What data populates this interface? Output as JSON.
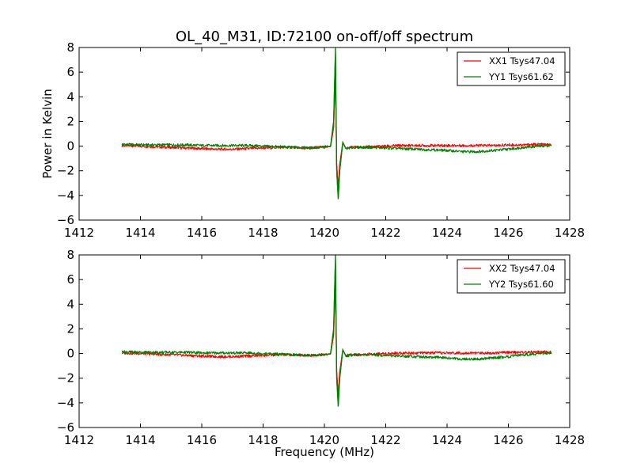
{
  "chart_data": [
    {
      "type": "line",
      "title": "OL_40_M31, ID:72100 on-off/off spectrum",
      "xlabel": "",
      "ylabel": "Power in Kelvin",
      "xlim": [
        1412,
        1428
      ],
      "ylim": [
        -6,
        8
      ],
      "xticks": [
        1412,
        1414,
        1416,
        1418,
        1420,
        1422,
        1424,
        1426,
        1428
      ],
      "yticks": [
        -6,
        -4,
        -2,
        0,
        2,
        4,
        6,
        8
      ],
      "legend_position": "top-right",
      "series": [
        {
          "name": "XX1 Tsys47.04",
          "color": "#ff0000",
          "x": [
            1413.4,
            1414.0,
            1414.5,
            1415.0,
            1415.5,
            1416.0,
            1416.5,
            1417.0,
            1417.5,
            1418.0,
            1418.5,
            1419.0,
            1419.5,
            1419.9,
            1420.2,
            1420.3,
            1420.36,
            1420.4,
            1420.45,
            1420.5,
            1420.6,
            1420.7,
            1420.8,
            1421.0,
            1421.5,
            1422.0,
            1422.5,
            1423.0,
            1423.5,
            1424.0,
            1424.5,
            1425.0,
            1425.5,
            1426.0,
            1426.5,
            1427.0,
            1427.4
          ],
          "y": [
            0.05,
            0.0,
            -0.05,
            -0.1,
            -0.15,
            -0.2,
            -0.25,
            -0.25,
            -0.2,
            -0.15,
            -0.1,
            -0.1,
            -0.15,
            -0.1,
            -0.05,
            1.5,
            6.0,
            -1.5,
            -3.4,
            -1.5,
            0.3,
            -0.2,
            -0.1,
            -0.1,
            -0.05,
            0.0,
            0.05,
            0.05,
            0.05,
            0.05,
            0.05,
            0.05,
            0.05,
            0.1,
            0.1,
            0.15,
            0.1
          ]
        },
        {
          "name": "YY1 Tsys61.62",
          "color": "#008000",
          "x": [
            1413.4,
            1414.0,
            1414.5,
            1415.0,
            1415.5,
            1416.0,
            1416.5,
            1417.0,
            1417.5,
            1418.0,
            1418.5,
            1419.0,
            1419.5,
            1419.9,
            1420.2,
            1420.3,
            1420.36,
            1420.4,
            1420.45,
            1420.5,
            1420.6,
            1420.7,
            1420.8,
            1421.0,
            1421.5,
            1422.0,
            1422.5,
            1423.0,
            1423.5,
            1424.0,
            1424.5,
            1425.0,
            1425.5,
            1426.0,
            1426.5,
            1427.0,
            1427.4
          ],
          "y": [
            0.15,
            0.1,
            0.1,
            0.1,
            0.1,
            0.05,
            0.05,
            0.05,
            0.05,
            0.0,
            -0.05,
            -0.1,
            -0.15,
            -0.1,
            0.0,
            2.0,
            8.0,
            -2.0,
            -4.3,
            -2.0,
            0.3,
            -0.2,
            -0.15,
            -0.1,
            -0.1,
            -0.15,
            -0.2,
            -0.25,
            -0.3,
            -0.35,
            -0.45,
            -0.45,
            -0.35,
            -0.25,
            -0.1,
            0.0,
            0.05
          ]
        }
      ]
    },
    {
      "type": "line",
      "title": "",
      "xlabel": "Frequency (MHz)",
      "ylabel": "",
      "xlim": [
        1412,
        1428
      ],
      "ylim": [
        -6,
        8
      ],
      "xticks": [
        1412,
        1414,
        1416,
        1418,
        1420,
        1422,
        1424,
        1426,
        1428
      ],
      "yticks": [
        -6,
        -4,
        -2,
        0,
        2,
        4,
        6,
        8
      ],
      "legend_position": "top-right",
      "series": [
        {
          "name": "XX2 Tsys47.04",
          "color": "#ff0000",
          "x": [
            1413.4,
            1414.0,
            1414.5,
            1415.0,
            1415.5,
            1416.0,
            1416.5,
            1417.0,
            1417.5,
            1418.0,
            1418.5,
            1419.0,
            1419.5,
            1419.9,
            1420.2,
            1420.3,
            1420.36,
            1420.4,
            1420.45,
            1420.5,
            1420.6,
            1420.7,
            1420.8,
            1421.0,
            1421.5,
            1422.0,
            1422.5,
            1423.0,
            1423.5,
            1424.0,
            1424.5,
            1425.0,
            1425.5,
            1426.0,
            1426.5,
            1427.0,
            1427.4
          ],
          "y": [
            0.05,
            0.0,
            -0.05,
            -0.1,
            -0.15,
            -0.2,
            -0.25,
            -0.25,
            -0.2,
            -0.15,
            -0.1,
            -0.1,
            -0.15,
            -0.1,
            -0.05,
            1.5,
            6.0,
            -1.5,
            -3.4,
            -1.5,
            0.3,
            -0.2,
            -0.1,
            -0.1,
            -0.05,
            0.0,
            0.05,
            0.05,
            0.05,
            0.05,
            0.05,
            0.05,
            0.05,
            0.1,
            0.1,
            0.15,
            0.1
          ]
        },
        {
          "name": "YY2 Tsys61.60",
          "color": "#008000",
          "x": [
            1413.4,
            1414.0,
            1414.5,
            1415.0,
            1415.5,
            1416.0,
            1416.5,
            1417.0,
            1417.5,
            1418.0,
            1418.5,
            1419.0,
            1419.5,
            1419.9,
            1420.2,
            1420.3,
            1420.36,
            1420.4,
            1420.45,
            1420.5,
            1420.6,
            1420.7,
            1420.8,
            1421.0,
            1421.5,
            1422.0,
            1422.5,
            1423.0,
            1423.5,
            1424.0,
            1424.5,
            1425.0,
            1425.5,
            1426.0,
            1426.5,
            1427.0,
            1427.4
          ],
          "y": [
            0.15,
            0.1,
            0.1,
            0.1,
            0.1,
            0.05,
            0.05,
            0.05,
            0.05,
            0.0,
            -0.05,
            -0.1,
            -0.15,
            -0.1,
            0.0,
            2.0,
            8.0,
            -2.0,
            -4.3,
            -2.0,
            0.3,
            -0.2,
            -0.15,
            -0.1,
            -0.1,
            -0.15,
            -0.2,
            -0.25,
            -0.3,
            -0.35,
            -0.45,
            -0.45,
            -0.35,
            -0.25,
            -0.1,
            0.0,
            0.05
          ]
        }
      ]
    }
  ]
}
